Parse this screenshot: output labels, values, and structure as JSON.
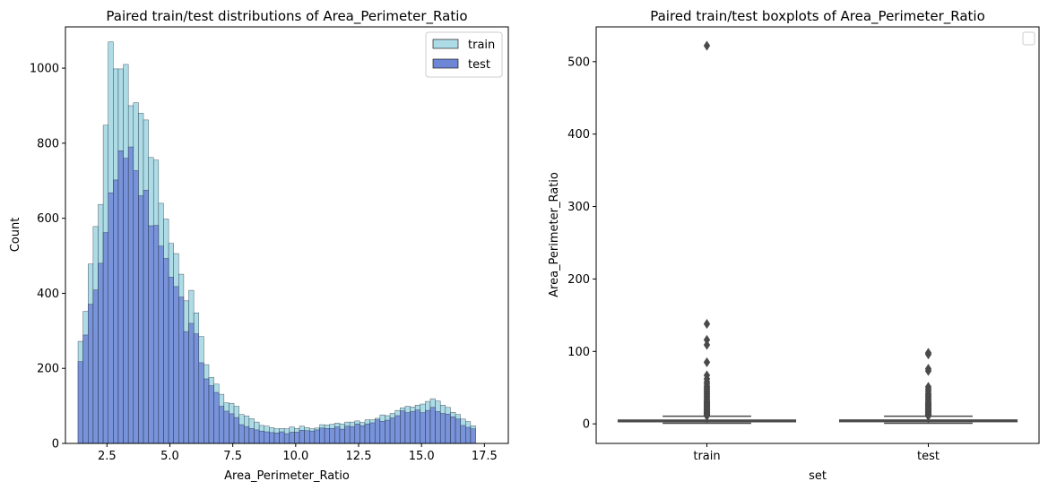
{
  "chart_data": [
    {
      "type": "histogram",
      "title": "Paired train/test distributions of Area_Perimeter_Ratio",
      "xlabel": "Area_Perimeter_Ratio",
      "ylabel": "Count",
      "xlim": [
        0.85,
        18.45
      ],
      "ylim": [
        0,
        1110
      ],
      "xticks": [
        2.5,
        5.0,
        7.5,
        10.0,
        12.5,
        15.0,
        17.5
      ],
      "xtick_labels": [
        "2.5",
        "5.0",
        "7.5",
        "10.0",
        "12.5",
        "15.0",
        "17.5"
      ],
      "yticks": [
        0,
        200,
        400,
        600,
        800,
        1000
      ],
      "ytick_labels": [
        "0",
        "200",
        "400",
        "600",
        "800",
        "1000"
      ],
      "legend_position": "top-right",
      "bin_start": 1.35,
      "bin_width": 0.2,
      "series": [
        {
          "name": "train",
          "color": "#ADDCE6",
          "values": [
            272,
            352,
            478,
            578,
            637,
            848,
            1070,
            998,
            998,
            1010,
            900,
            908,
            880,
            862,
            762,
            755,
            640,
            598,
            533,
            506,
            451,
            380,
            408,
            348,
            285,
            210,
            176,
            158,
            131,
            108,
            107,
            99,
            77,
            73,
            66,
            57,
            48,
            46,
            42,
            39,
            40,
            39,
            44,
            40,
            46,
            42,
            39,
            41,
            50,
            49,
            51,
            54,
            52,
            57,
            57,
            60,
            56,
            63,
            63,
            67,
            76,
            74,
            80,
            88,
            95,
            99,
            97,
            102,
            105,
            112,
            119,
            113,
            102,
            96,
            83,
            77,
            65,
            58,
            47
          ]
        },
        {
          "name": "test",
          "color": "#6E86D6",
          "values": [
            218,
            289,
            371,
            409,
            480,
            562,
            668,
            702,
            780,
            760,
            790,
            727,
            660,
            675,
            580,
            581,
            526,
            493,
            443,
            418,
            390,
            298,
            320,
            292,
            215,
            172,
            154,
            136,
            99,
            86,
            79,
            69,
            50,
            45,
            40,
            36,
            33,
            31,
            29,
            28,
            31,
            26,
            30,
            30,
            35,
            34,
            33,
            36,
            41,
            40,
            40,
            44,
            38,
            46,
            45,
            52,
            47,
            52,
            55,
            63,
            59,
            62,
            68,
            74,
            87,
            82,
            85,
            89,
            82,
            88,
            96,
            85,
            80,
            78,
            71,
            65,
            48,
            43,
            39
          ]
        }
      ]
    },
    {
      "type": "boxplot",
      "title": "Paired train/test boxplots of Area_Perimeter_Ratio",
      "xlabel": "set",
      "ylabel": "Area_Perimeter_Ratio",
      "categories": [
        "train",
        "test"
      ],
      "ylim": [
        -27,
        548
      ],
      "yticks": [
        0,
        100,
        200,
        300,
        400,
        500
      ],
      "ytick_labels": [
        "0",
        "100",
        "200",
        "300",
        "400",
        "500"
      ],
      "legend": "empty box, top-right",
      "box_color": "#4A4A4A",
      "boxes": [
        {
          "name": "train",
          "whisker_low": 0.8,
          "q1": 3.0,
          "median": 4.0,
          "q3": 5.2,
          "whisker_high": 10.5,
          "outliers": [
            522,
            138,
            116,
            109,
            85,
            67,
            62,
            58,
            55,
            52,
            50,
            48,
            46,
            44,
            42,
            40,
            38,
            36,
            34,
            32,
            31,
            30,
            29,
            28,
            27,
            26,
            25,
            24,
            23,
            22,
            21,
            20,
            19,
            18,
            17,
            16,
            15,
            14,
            13,
            12.5,
            12,
            11.5,
            11
          ]
        },
        {
          "name": "test",
          "whisker_low": 0.8,
          "q1": 3.1,
          "median": 4.1,
          "q3": 5.3,
          "whisker_high": 10.5,
          "outliers": [
            98,
            96,
            76,
            73,
            51,
            48,
            45,
            42,
            40,
            38,
            36,
            34,
            32,
            30,
            29,
            28,
            27,
            26,
            25,
            24,
            23,
            22,
            21,
            20,
            19,
            18,
            17,
            16,
            15,
            14,
            13,
            12.5,
            12,
            11.5,
            11
          ]
        }
      ]
    }
  ]
}
